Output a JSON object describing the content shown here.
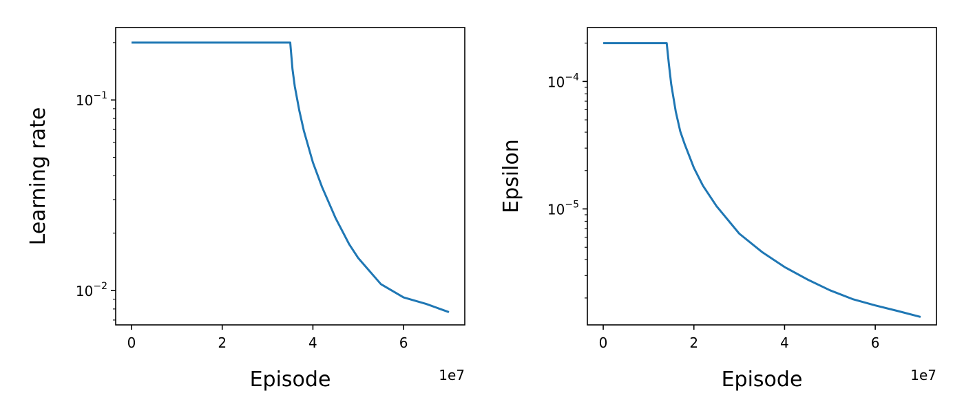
{
  "chart_data": [
    {
      "type": "line",
      "xlabel": "Episode",
      "ylabel": "Learning rate",
      "x_offset_label": "1e7",
      "xlim": [
        -3500000,
        73500000
      ],
      "ylim": [
        0.0066,
        0.24
      ],
      "yscale": "log",
      "grid": false,
      "color": "#1f77b4",
      "x_ticks": [
        {
          "value": 0,
          "label": "0"
        },
        {
          "value": 20000000,
          "label": "2"
        },
        {
          "value": 40000000,
          "label": "4"
        },
        {
          "value": 60000000,
          "label": "6"
        }
      ],
      "y_major_ticks": [
        {
          "value": 0.1,
          "base": "10",
          "exp": "−1"
        },
        {
          "value": 0.01,
          "base": "10",
          "exp": "−2"
        }
      ],
      "series": [
        {
          "x": [
            0,
            10000000,
            20000000,
            30000000,
            35000000,
            35500000,
            36000000,
            37000000,
            38000000,
            40000000,
            42000000,
            45000000,
            48000000,
            50000000,
            55000000,
            60000000,
            65000000,
            70000000
          ],
          "y": [
            0.2,
            0.2,
            0.2,
            0.2,
            0.2,
            0.145,
            0.118,
            0.088,
            0.069,
            0.047,
            0.035,
            0.024,
            0.0175,
            0.0148,
            0.0108,
            0.0092,
            0.0085,
            0.0077
          ]
        }
      ]
    },
    {
      "type": "line",
      "xlabel": "Episode",
      "ylabel": "Epsilon",
      "x_offset_label": "1e7",
      "xlim": [
        -3500000,
        73500000
      ],
      "ylim": [
        1.23e-06,
        0.000265
      ],
      "yscale": "log",
      "grid": false,
      "color": "#1f77b4",
      "x_ticks": [
        {
          "value": 0,
          "label": "0"
        },
        {
          "value": 20000000,
          "label": "2"
        },
        {
          "value": 40000000,
          "label": "4"
        },
        {
          "value": 60000000,
          "label": "6"
        }
      ],
      "y_major_ticks": [
        {
          "value": 0.0001,
          "base": "10",
          "exp": "−4"
        },
        {
          "value": 1e-05,
          "base": "10",
          "exp": "−5"
        }
      ],
      "series": [
        {
          "x": [
            0,
            5000000,
            10000000,
            14000000,
            14500000,
            15000000,
            16000000,
            17000000,
            18000000,
            20000000,
            22000000,
            25000000,
            30000000,
            35000000,
            40000000,
            45000000,
            50000000,
            55000000,
            60000000,
            65000000,
            70000000
          ],
          "y": [
            0.0002,
            0.0002,
            0.0002,
            0.0002,
            0.000135,
            9.5e-05,
            5.8e-05,
            4.05e-05,
            3.2e-05,
            2.1e-05,
            1.52e-05,
            1.05e-05,
            6.4e-06,
            4.6e-06,
            3.5e-06,
            2.8e-06,
            2.3e-06,
            1.96e-06,
            1.75e-06,
            1.58e-06,
            1.42e-06
          ]
        }
      ]
    }
  ]
}
